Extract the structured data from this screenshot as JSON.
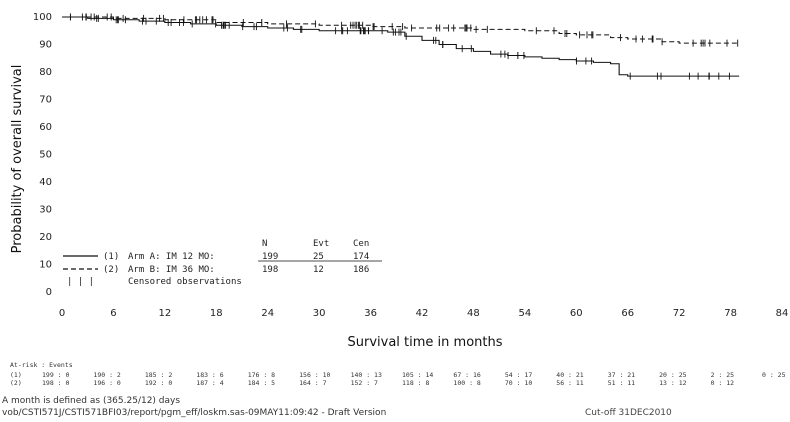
{
  "chart_data": {
    "type": "line",
    "subtype": "kaplan-meier",
    "xlabel": "Survival time in months",
    "ylabel": "Probability of overall survival",
    "xlim": [
      0,
      84
    ],
    "ylim": [
      0,
      100
    ],
    "x_ticks": [
      "0",
      "6",
      "12",
      "18",
      "24",
      "30",
      "36",
      "42",
      "48",
      "54",
      "60",
      "66",
      "72",
      "78",
      "84"
    ],
    "y_ticks": [
      "0",
      "10",
      "20",
      "30",
      "40",
      "50",
      "60",
      "70",
      "80",
      "90",
      "100"
    ],
    "grid": false,
    "legend_header": [
      "N",
      "Evt",
      "Cen"
    ],
    "legend": [
      {
        "key": "(1)",
        "style": "solid",
        "label": "Arm A: IM 12 MO:",
        "n": "199",
        "evt": "25",
        "cen": "174"
      },
      {
        "key": "(2)",
        "style": "dashed",
        "label": "Arm B: IM 36 MO:",
        "n": "198",
        "evt": "12",
        "cen": "186"
      },
      {
        "key": "| | |",
        "style": "ticks",
        "label": "Censored observations"
      }
    ],
    "series": [
      {
        "name": "Arm A: IM 12 MO",
        "style": "solid",
        "x": [
          0,
          3,
          6,
          9,
          12,
          15,
          18,
          21,
          24,
          27,
          30,
          33,
          36,
          38,
          40,
          42,
          44,
          46,
          48,
          50,
          52,
          54,
          56,
          58,
          60,
          62,
          64,
          65,
          66,
          70,
          74,
          78,
          79
        ],
        "y": [
          100,
          99.5,
          99,
          98.5,
          98,
          97.5,
          97,
          96.5,
          96,
          95.5,
          95,
          95,
          95,
          94.5,
          93,
          91.5,
          90,
          88.5,
          87.5,
          86.5,
          86,
          85.5,
          85,
          84.5,
          84,
          83.5,
          83,
          79,
          78.5,
          78.5,
          78.5,
          78.5,
          78.5
        ]
      },
      {
        "name": "Arm B: IM 36 MO",
        "style": "dashed",
        "x": [
          0,
          6,
          12,
          18,
          24,
          30,
          36,
          40,
          42,
          48,
          54,
          58,
          60,
          64,
          66,
          70,
          72,
          78,
          79
        ],
        "y": [
          100,
          99.5,
          99,
          98,
          97.5,
          97,
          96.5,
          96,
          96,
          95.5,
          95,
          94,
          93.5,
          92.5,
          92,
          91,
          90.5,
          90.5,
          90.5
        ]
      }
    ],
    "risk_table": {
      "title": "At-risk : Events",
      "rows": [
        {
          "key": "(1)",
          "values": [
            "199 : 0",
            "190 : 2",
            "185 : 2",
            "183 : 6",
            "176 : 8",
            "156 : 10",
            "140 : 13",
            "105 : 14",
            "67 : 16",
            "54 : 17",
            "40 : 21",
            "37 : 21",
            "20 : 25",
            "2 : 25",
            "0 : 25"
          ]
        },
        {
          "key": "(2)",
          "values": [
            "198 : 0",
            "196 : 0",
            "192 : 0",
            "187 : 4",
            "184 : 5",
            "164 : 7",
            "152 : 7",
            "118 : 8",
            "100 : 8",
            "70 : 10",
            "56 : 11",
            "51 : 11",
            "13 : 12",
            "0 : 12",
            ""
          ]
        }
      ]
    }
  },
  "footer": {
    "line1": "A month is defined as (365.25/12) days",
    "line2": "vob/CSTI571J/CSTI571BFI03/report/pgm_eff/loskm.sas-09MAY11:09:42 - Draft Version",
    "line3": "Cut-off 31DEC2010"
  },
  "colors": {
    "line": "#111111",
    "text": "#222222"
  }
}
